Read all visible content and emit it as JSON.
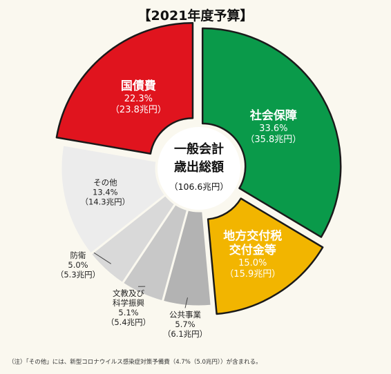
{
  "title": "【2021年度予算】",
  "footnote": "（注）「その他」には、新型コロナウイルス感染症対策予備費（4.7%（5.0兆円））が含まれる。",
  "colors": {
    "social_security": "#0a9a4a",
    "local_tax": "#f2b500",
    "public_works": "#b3b3b3",
    "education_science": "#c8c8c8",
    "defense": "#d9d9d9",
    "other": "#ececec",
    "debt": "#e0141e"
  },
  "chart_data": {
    "type": "pie",
    "title": "【2021年度予算】",
    "center_label": [
      "一般会計",
      "歳出総額",
      "（106.6兆円）"
    ],
    "slices": [
      {
        "key": "social_security",
        "name": [
          "社会保障"
        ],
        "percent": 33.6,
        "percent_label": "33.6%",
        "amount_label": "（35.8兆円）"
      },
      {
        "key": "local_tax",
        "name": [
          "地方交付税",
          "交付金等"
        ],
        "percent": 15.0,
        "percent_label": "15.0%",
        "amount_label": "（15.9兆円）"
      },
      {
        "key": "public_works",
        "name": [
          "公共事業"
        ],
        "percent": 5.7,
        "percent_label": "5.7%",
        "amount_label": "（6.1兆円）"
      },
      {
        "key": "education_science",
        "name": [
          "文教及び",
          "科学振興"
        ],
        "percent": 5.1,
        "percent_label": "5.1%",
        "amount_label": "（5.4兆円）"
      },
      {
        "key": "defense",
        "name": [
          "防衛"
        ],
        "percent": 5.0,
        "percent_label": "5.0%",
        "amount_label": "（5.3兆円）"
      },
      {
        "key": "other",
        "name": [
          "その他"
        ],
        "percent": 13.4,
        "percent_label": "13.4%",
        "amount_label": "（14.3兆円）"
      },
      {
        "key": "debt",
        "name": [
          "国債費"
        ],
        "percent": 22.3,
        "percent_label": "22.3%",
        "amount_label": "（23.8兆円）"
      }
    ]
  }
}
